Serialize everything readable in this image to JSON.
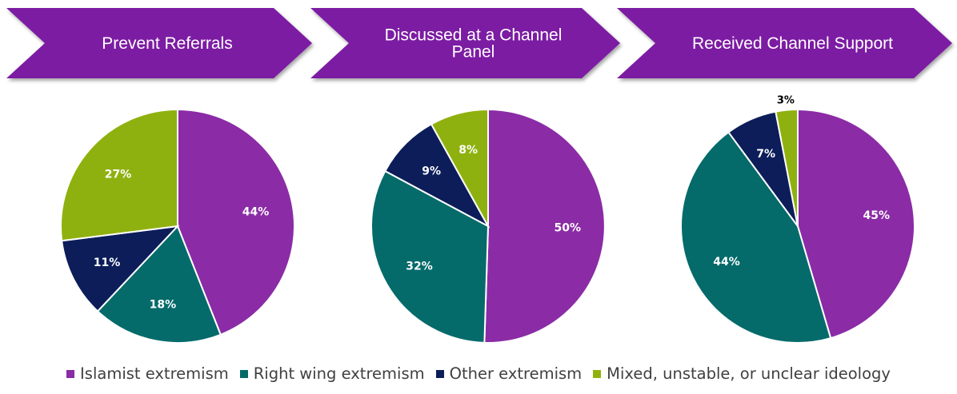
{
  "header": {
    "stages": [
      {
        "label_lines": [
          "Prevent Referrals"
        ]
      },
      {
        "label_lines": [
          "Discussed at a Channel",
          "Panel"
        ]
      },
      {
        "label_lines": [
          "Received Channel Support"
        ]
      }
    ]
  },
  "colors": {
    "chevron": "#7c1fa3",
    "islamist": "#8b2ba6",
    "right_wing": "#056a6a",
    "other": "#0c1d5a",
    "mixed": "#8fb10f"
  },
  "chart_data": [
    {
      "type": "pie",
      "title": "Prevent Referrals",
      "slices": [
        {
          "series": "Islamist extremism",
          "value": 44,
          "label": "44%"
        },
        {
          "series": "Right wing extremism",
          "value": 18,
          "label": "18%"
        },
        {
          "series": "Other extremism",
          "value": 11,
          "label": "11%"
        },
        {
          "series": "Mixed, unstable, or unclear ideology",
          "value": 27,
          "label": "27%"
        }
      ]
    },
    {
      "type": "pie",
      "title": "Discussed at a Channel Panel",
      "slices": [
        {
          "series": "Islamist extremism",
          "value": 50,
          "label": "50%"
        },
        {
          "series": "Right wing extremism",
          "value": 32,
          "label": "32%"
        },
        {
          "series": "Other extremism",
          "value": 9,
          "label": "9%"
        },
        {
          "series": "Mixed, unstable, or unclear ideology",
          "value": 8,
          "label": "8%"
        }
      ]
    },
    {
      "type": "pie",
      "title": "Received Channel Support",
      "slices": [
        {
          "series": "Islamist extremism",
          "value": 45,
          "label": "45%"
        },
        {
          "series": "Right wing extremism",
          "value": 44,
          "label": "44%"
        },
        {
          "series": "Other extremism",
          "value": 7,
          "label": "7%"
        },
        {
          "series": "Mixed, unstable, or unclear ideology",
          "value": 3,
          "label": "3%"
        }
      ]
    }
  ],
  "legend": {
    "placement": "bottom",
    "items": [
      {
        "label": "Islamist extremism",
        "color_key": "islamist"
      },
      {
        "label": "Right wing extremism",
        "color_key": "right_wing"
      },
      {
        "label": "Other extremism",
        "color_key": "other"
      },
      {
        "label": "Mixed, unstable, or unclear ideology",
        "color_key": "mixed"
      }
    ]
  }
}
